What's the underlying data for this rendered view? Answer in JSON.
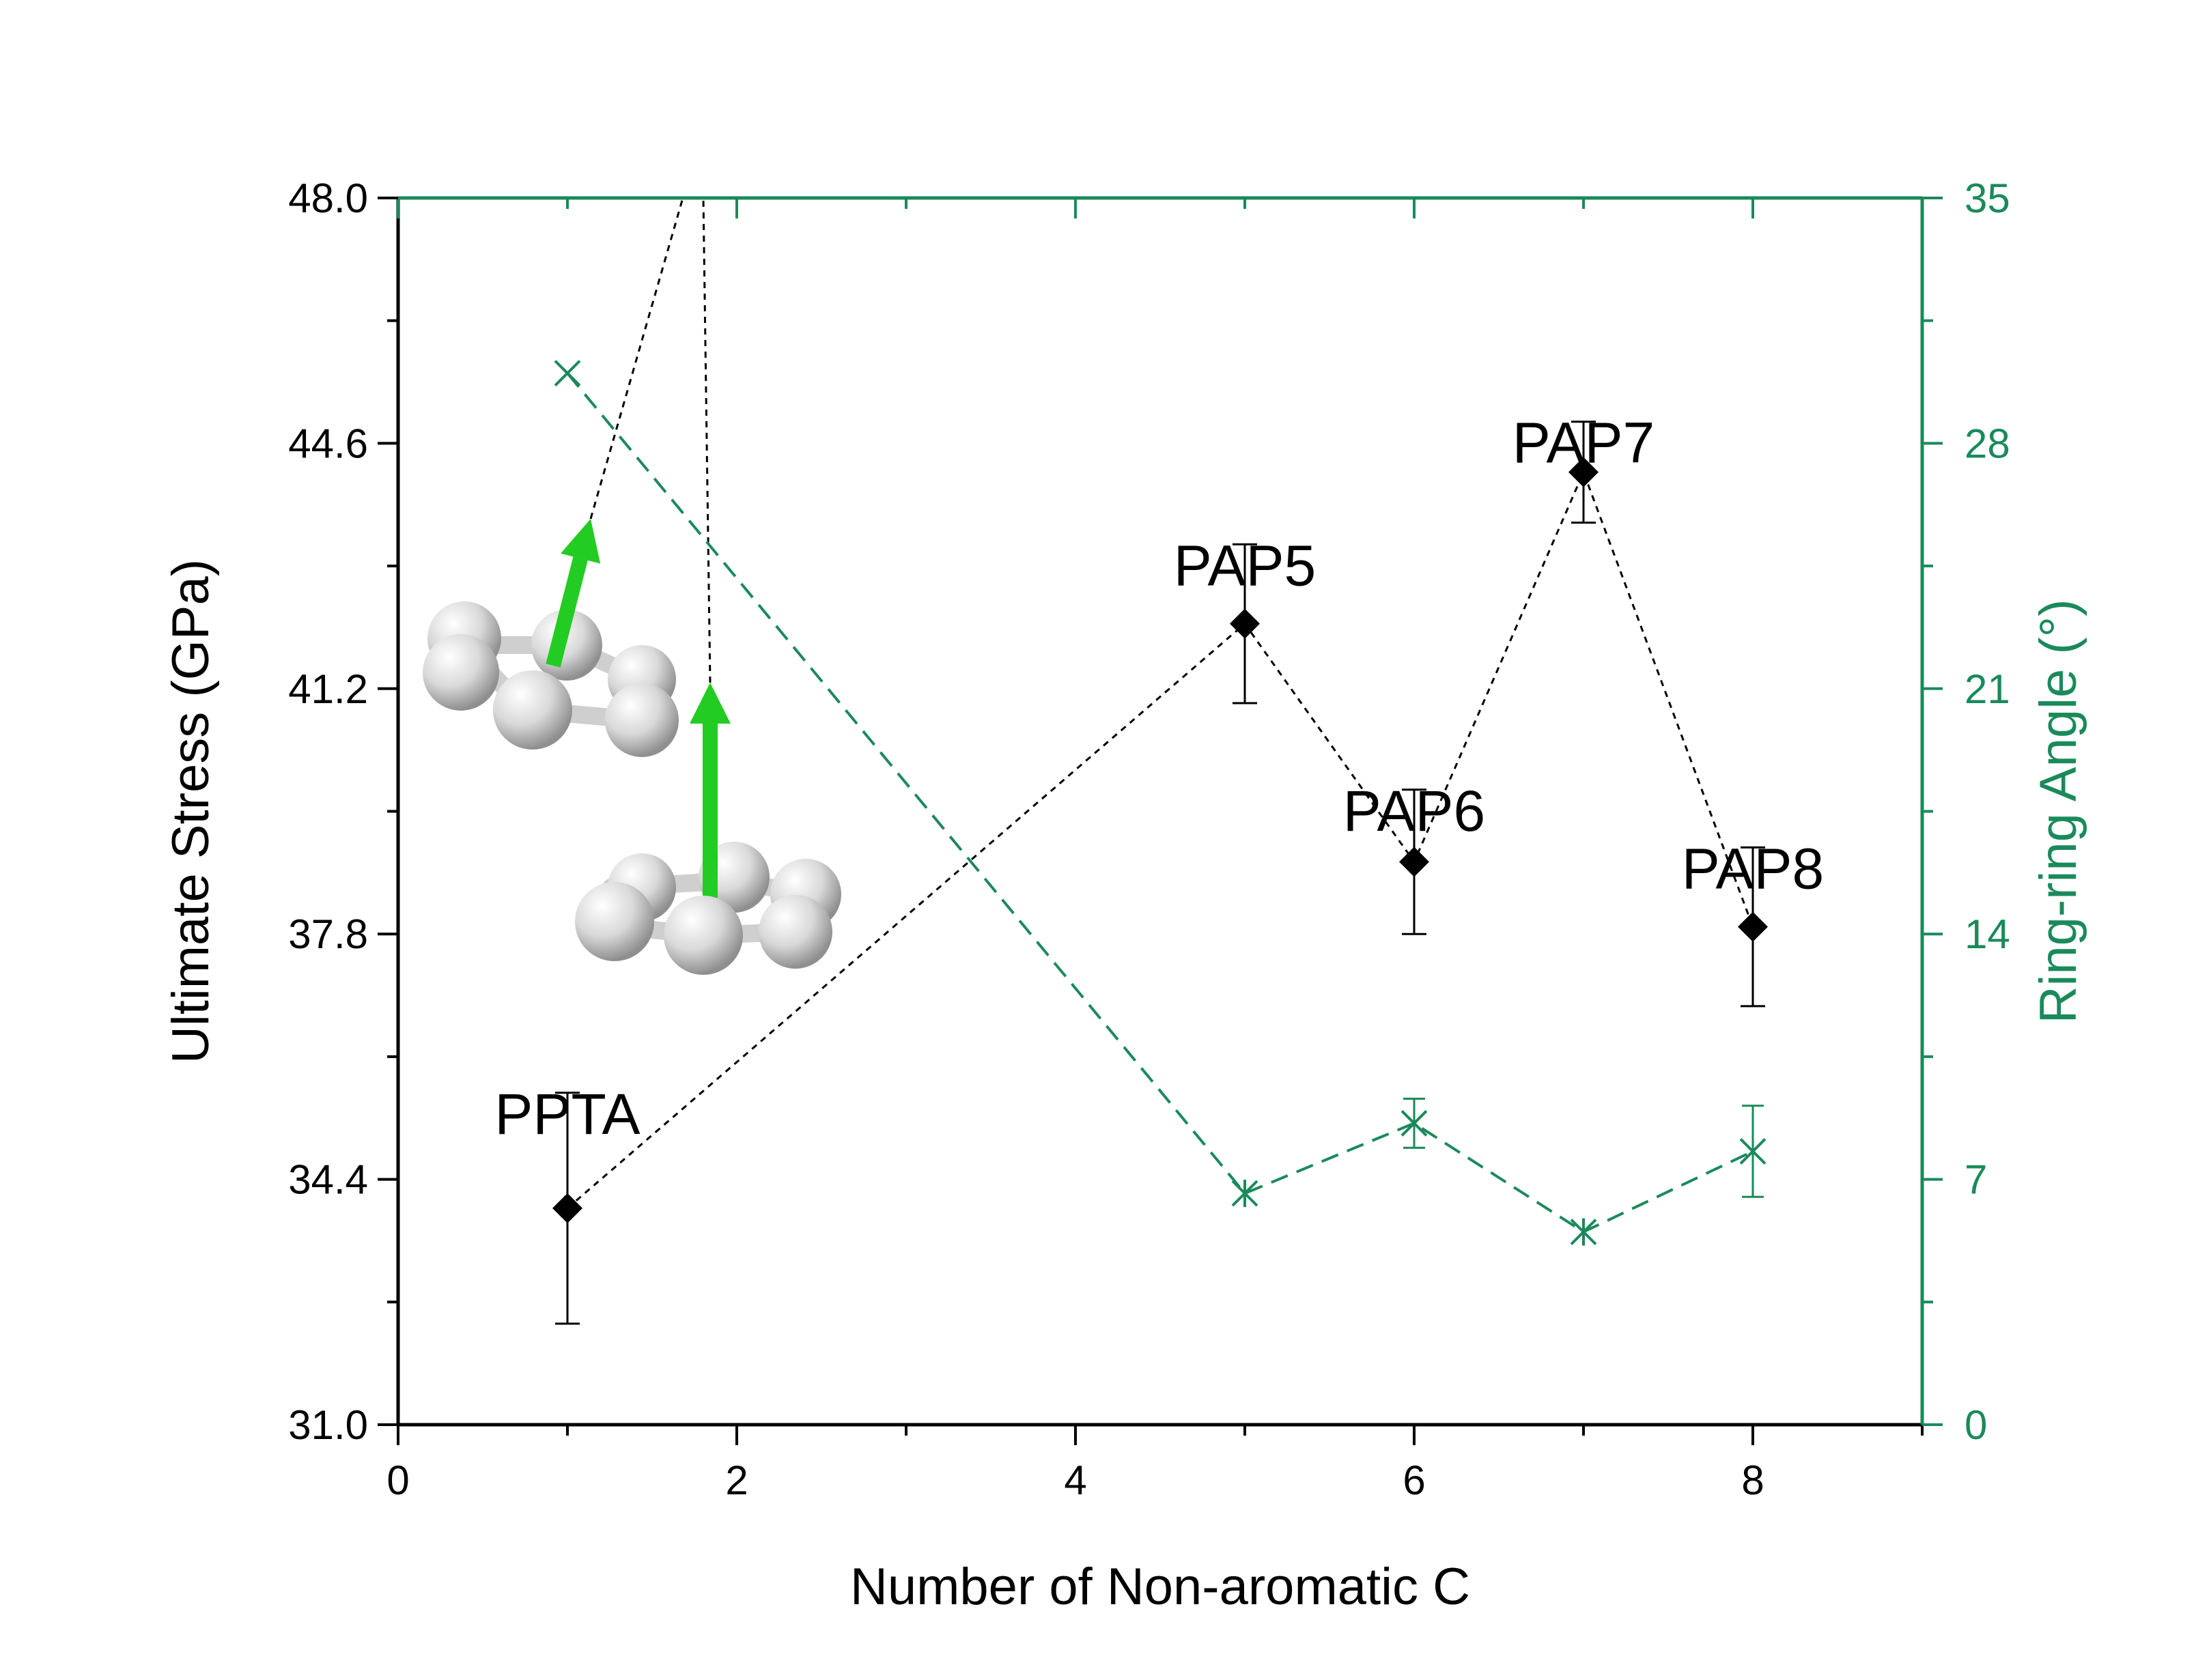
{
  "chart_data": {
    "type": "scatter",
    "title": "",
    "xlabel": "Number of Non-aromatic C",
    "ylabel": "Ultimate Stress (GPa)",
    "y2label": "Ring-ring Angle (°)",
    "xlim": [
      0,
      9
    ],
    "ylim": [
      31.0,
      48.0
    ],
    "y2lim": [
      0,
      35
    ],
    "x_ticks": [
      "0",
      "2",
      "4",
      "6",
      "8"
    ],
    "y_ticks": [
      "31.0",
      "34.4",
      "37.8",
      "41.2",
      "44.6",
      "48.0"
    ],
    "y2_ticks": [
      "0",
      "7",
      "14",
      "21",
      "28",
      "35"
    ],
    "grid": false,
    "colors": {
      "stress": "#000000",
      "angle": "#1a8a5a",
      "arrow": "#22cc22",
      "atom": "#d8d8d8"
    },
    "series": [
      {
        "axis": "left",
        "marker": "diamond",
        "line": "dotted",
        "points": [
          {
            "x": 1,
            "y": 34.0,
            "err": 1.6,
            "label": "PPTA"
          },
          {
            "x": 5,
            "y": 42.1,
            "err": 1.1,
            "label": "PAP5"
          },
          {
            "x": 6,
            "y": 38.8,
            "err": 1.0,
            "label": "PAP6"
          },
          {
            "x": 7,
            "y": 44.2,
            "err": 0.7,
            "label": "PAP7"
          },
          {
            "x": 8,
            "y": 37.9,
            "err": 1.1,
            "label": "PAP8"
          }
        ]
      },
      {
        "axis": "right",
        "marker": "x",
        "line": "dashed",
        "points": [
          {
            "x": 1,
            "y": 30.0,
            "err": 0,
            "shape": "x"
          },
          {
            "x": 5,
            "y": 6.6,
            "err": 0,
            "shape": "star"
          },
          {
            "x": 6,
            "y": 8.6,
            "err": 0.7,
            "shape": "x"
          },
          {
            "x": 7,
            "y": 5.5,
            "err": 0,
            "shape": "star"
          },
          {
            "x": 8,
            "y": 7.8,
            "err": 1.3,
            "shape": "x"
          }
        ]
      }
    ]
  }
}
